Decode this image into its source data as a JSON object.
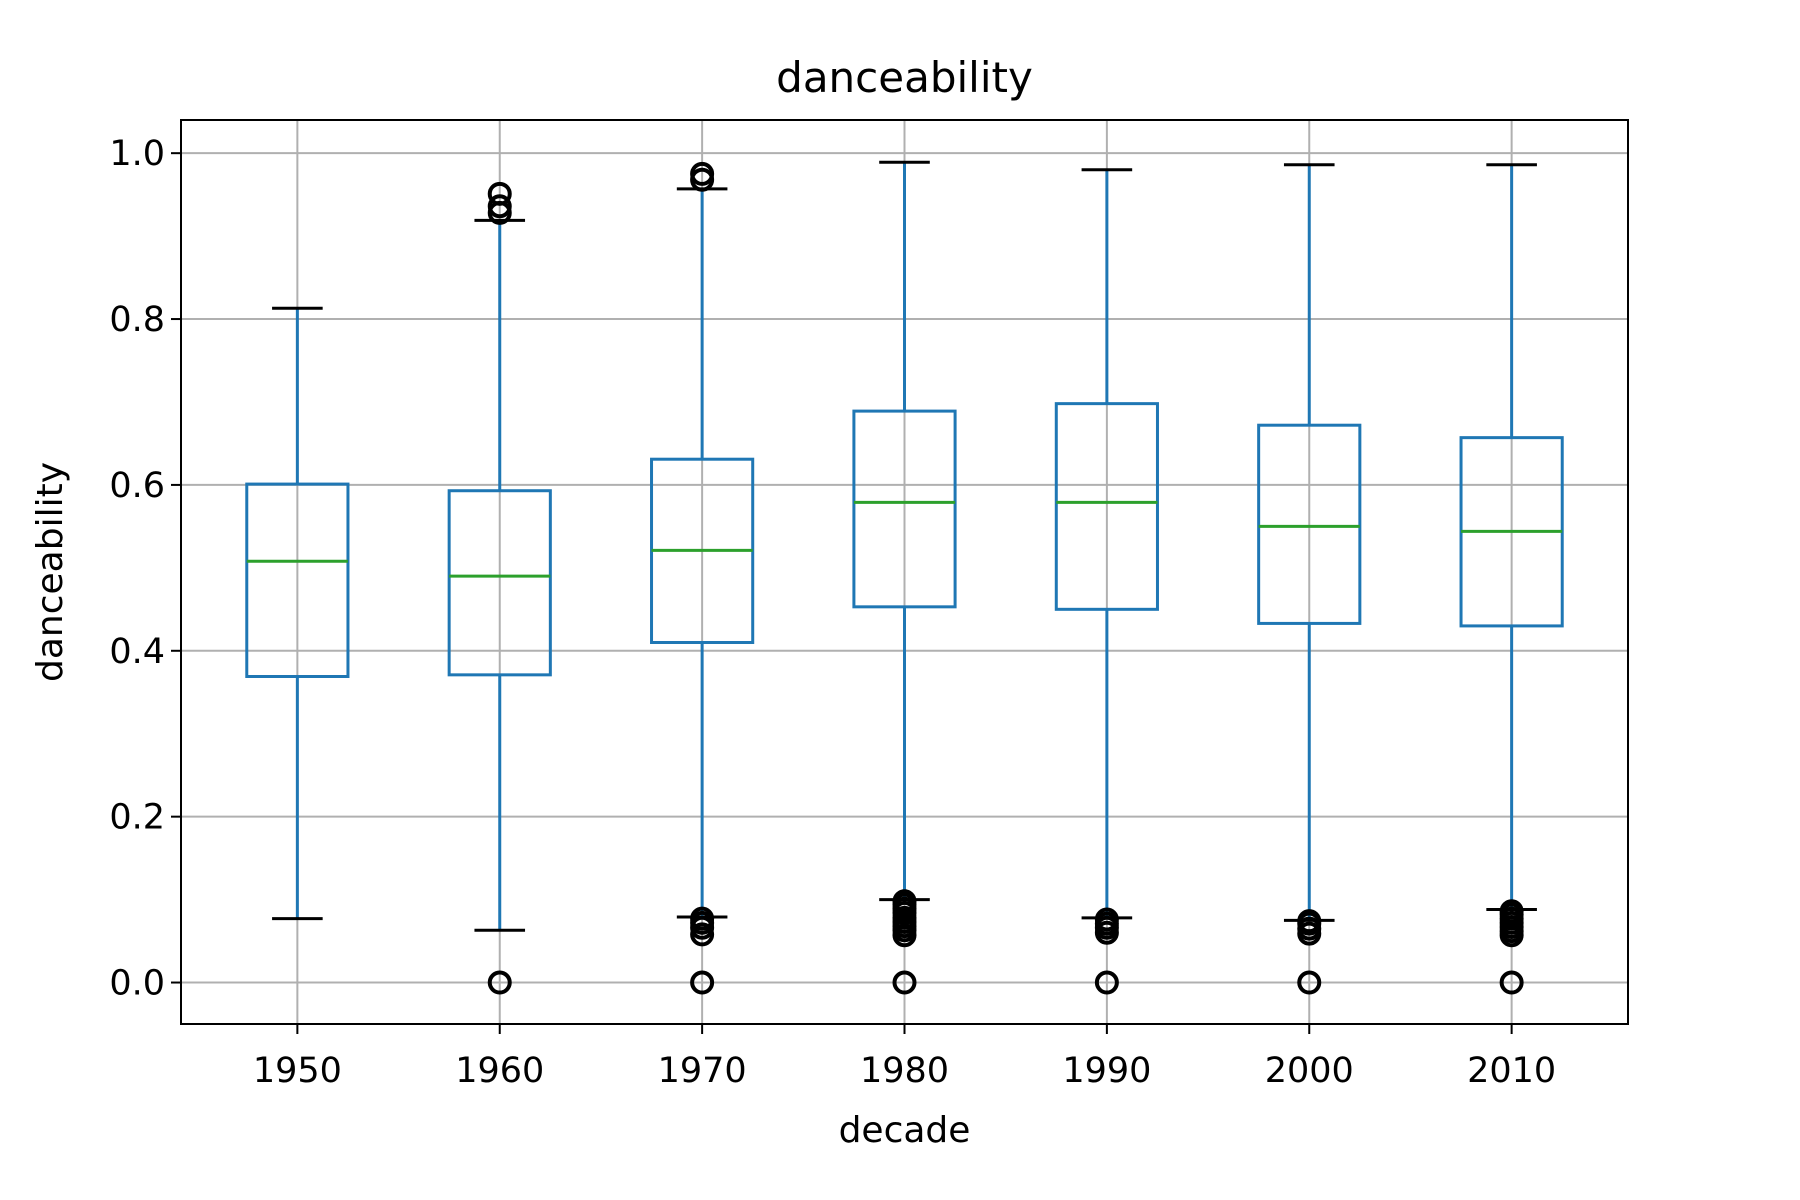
{
  "chart_data": {
    "type": "box",
    "title": "danceability",
    "xlabel": "decade",
    "ylabel": "danceability",
    "categories": [
      "1950",
      "1960",
      "1970",
      "1980",
      "1990",
      "2000",
      "2010"
    ],
    "yticks": [
      "0.0",
      "0.2",
      "0.4",
      "0.6",
      "0.8",
      "1.0"
    ],
    "ylim": [
      -0.05,
      1.04
    ],
    "grid": true,
    "colors": {
      "box": "#1f77b4",
      "median": "#2ca02c",
      "cap": "#000000",
      "flier": "#000000",
      "grid": "#b0b0b0"
    },
    "boxes": [
      {
        "category": "1950",
        "whislo": 0.077,
        "q1": 0.369,
        "med": 0.508,
        "q3": 0.601,
        "whishi": 0.813,
        "fliers": []
      },
      {
        "category": "1960",
        "whislo": 0.063,
        "q1": 0.371,
        "med": 0.49,
        "q3": 0.593,
        "whishi": 0.919,
        "fliers": [
          0.0,
          0.928,
          0.936,
          0.951
        ]
      },
      {
        "category": "1970",
        "whislo": 0.079,
        "q1": 0.41,
        "med": 0.521,
        "q3": 0.631,
        "whishi": 0.957,
        "fliers": [
          0.0,
          0.058,
          0.066,
          0.072,
          0.077,
          0.968,
          0.975
        ]
      },
      {
        "category": "1980",
        "whislo": 0.1,
        "q1": 0.453,
        "med": 0.579,
        "q3": 0.689,
        "whishi": 0.989,
        "fliers": [
          0.0,
          0.057,
          0.063,
          0.068,
          0.073,
          0.078,
          0.084,
          0.089,
          0.094,
          0.098
        ]
      },
      {
        "category": "1990",
        "whislo": 0.078,
        "q1": 0.45,
        "med": 0.579,
        "q3": 0.698,
        "whishi": 0.98,
        "fliers": [
          0.0,
          0.06,
          0.066,
          0.071,
          0.076
        ]
      },
      {
        "category": "2000",
        "whislo": 0.075,
        "q1": 0.433,
        "med": 0.55,
        "q3": 0.672,
        "whishi": 0.986,
        "fliers": [
          0.0,
          0.059,
          0.065,
          0.071,
          0.074
        ]
      },
      {
        "category": "2010",
        "whislo": 0.088,
        "q1": 0.43,
        "med": 0.544,
        "q3": 0.657,
        "whishi": 0.986,
        "fliers": [
          0.0,
          0.057,
          0.062,
          0.067,
          0.072,
          0.077,
          0.082,
          0.086
        ]
      }
    ]
  }
}
